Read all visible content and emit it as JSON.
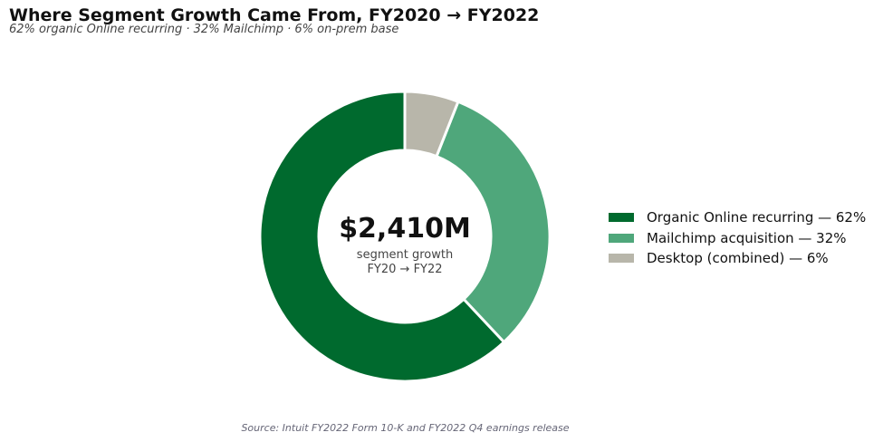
{
  "title": "Where Segment Growth Came From, FY2020 → FY2022",
  "subtitle": "62% organic Online recurring · 32% Mailchimp · 6% on-prem base",
  "source": "Source: Intuit FY2022 Form 10-K and FY2022 Q4 earnings release",
  "center": {
    "value": "$2,410M",
    "line1": "segment growth",
    "line2": "FY20 → FY22"
  },
  "chart_data": {
    "type": "pie",
    "donut": true,
    "start": "12 o'clock",
    "direction": "counterclockwise",
    "title": "Where Segment Growth Came From, FY2020 → FY2022",
    "legend_position": "right",
    "series": [
      {
        "name": "Organic Online recurring",
        "value": 62,
        "color": "#006a2e",
        "legend": "Organic Online recurring — 62%"
      },
      {
        "name": "Mailchimp acquisition",
        "value": 32,
        "color": "#4fa77b",
        "legend": "Mailchimp acquisition — 32%"
      },
      {
        "name": "Desktop (combined)",
        "value": 6,
        "color": "#b8b6aa",
        "legend": "Desktop (combined) — 6%"
      }
    ]
  }
}
